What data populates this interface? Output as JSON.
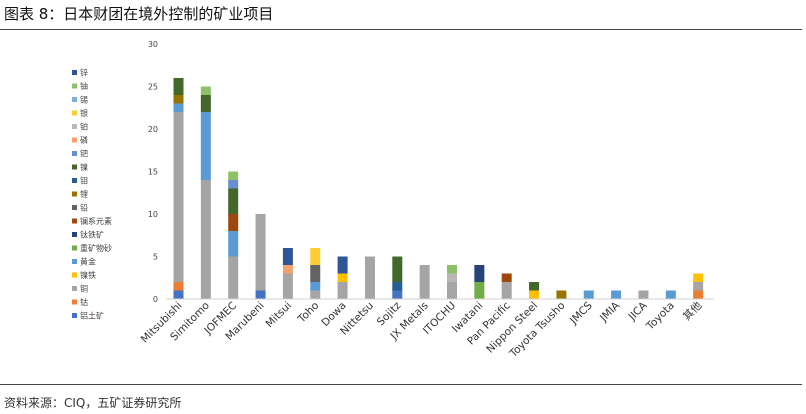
{
  "page": {
    "title": "图表 8：日本财团在境外控制的矿业项目",
    "source": "资料来源：CIQ，五矿证券研究所"
  },
  "chart_data": {
    "type": "bar",
    "stacked": true,
    "grid": false,
    "legend_position": "left",
    "ylim": [
      0,
      30
    ],
    "yticks": [
      0,
      5,
      10,
      15,
      20,
      25,
      30
    ],
    "categories": [
      "Mitsubishi",
      "Simitomo",
      "JOFMEC",
      "Marubeni",
      "Mitsui",
      "Toho",
      "Dowa",
      "Nittetsu",
      "Sojitz",
      "JX Metals",
      "ITOCHU",
      "Iwatani",
      "Pan Pacific",
      "Nippon Steel",
      "Toyota Tsusho",
      "JMCS",
      "JMIA",
      "JICA",
      "Toyota",
      "其他"
    ],
    "series": [
      {
        "name": "铝土矿",
        "color": "#4472C4",
        "values": [
          1,
          0,
          0,
          1,
          0,
          0,
          0,
          0,
          1,
          0,
          0,
          0,
          0,
          0,
          0,
          0,
          0,
          0,
          0,
          0
        ]
      },
      {
        "name": "钴",
        "color": "#ED7D31",
        "values": [
          1,
          0,
          0,
          0,
          0,
          0,
          0,
          0,
          0,
          0,
          0,
          0,
          0,
          0,
          0,
          0,
          0,
          0,
          0,
          1
        ]
      },
      {
        "name": "铜",
        "color": "#A5A5A5",
        "values": [
          20,
          14,
          5,
          9,
          3,
          1,
          2,
          5,
          0,
          4,
          2,
          0,
          2,
          0,
          0,
          0,
          0,
          1,
          0,
          1
        ]
      },
      {
        "name": "镍铁",
        "color": "#FFC000",
        "values": [
          0,
          0,
          0,
          0,
          0,
          0,
          1,
          0,
          0,
          0,
          0,
          0,
          0,
          1,
          0,
          0,
          0,
          0,
          0,
          1
        ]
      },
      {
        "name": "黄金",
        "color": "#5B9BD5",
        "values": [
          1,
          8,
          3,
          0,
          0,
          1,
          0,
          0,
          0,
          0,
          0,
          0,
          0,
          0,
          0,
          1,
          1,
          0,
          1,
          0
        ]
      },
      {
        "name": "重矿物砂",
        "color": "#70AD47",
        "values": [
          0,
          0,
          0,
          0,
          0,
          0,
          0,
          0,
          0,
          0,
          0,
          2,
          0,
          0,
          0,
          0,
          0,
          0,
          0,
          0
        ]
      },
      {
        "name": "钛铁矿",
        "color": "#264478",
        "values": [
          0,
          0,
          0,
          0,
          0,
          0,
          0,
          0,
          0,
          0,
          0,
          2,
          0,
          0,
          0,
          0,
          0,
          0,
          0,
          0
        ]
      },
      {
        "name": "镧系元素",
        "color": "#9E480E",
        "values": [
          0,
          0,
          2,
          0,
          0,
          0,
          0,
          0,
          0,
          0,
          0,
          0,
          1,
          0,
          0,
          0,
          0,
          0,
          0,
          0
        ]
      },
      {
        "name": "铅",
        "color": "#636363",
        "values": [
          0,
          0,
          0,
          0,
          0,
          2,
          0,
          0,
          0,
          0,
          0,
          0,
          0,
          0,
          0,
          0,
          0,
          0,
          0,
          0
        ]
      },
      {
        "name": "锂",
        "color": "#997300",
        "values": [
          1,
          0,
          0,
          0,
          0,
          0,
          0,
          0,
          0,
          0,
          0,
          0,
          0,
          0,
          1,
          0,
          0,
          0,
          0,
          0
        ]
      },
      {
        "name": "钼",
        "color": "#255E91",
        "values": [
          0,
          0,
          0,
          0,
          0,
          0,
          0,
          0,
          1,
          0,
          0,
          0,
          0,
          0,
          0,
          0,
          0,
          0,
          0,
          0
        ]
      },
      {
        "name": "镍",
        "color": "#43682B",
        "values": [
          2,
          2,
          3,
          0,
          0,
          0,
          0,
          0,
          3,
          0,
          0,
          0,
          0,
          1,
          0,
          0,
          0,
          0,
          0,
          0
        ]
      },
      {
        "name": "钯",
        "color": "#698ED0",
        "values": [
          0,
          0,
          1,
          0,
          0,
          0,
          0,
          0,
          0,
          0,
          0,
          0,
          0,
          0,
          0,
          0,
          0,
          0,
          0,
          0
        ]
      },
      {
        "name": "磷",
        "color": "#F4A270",
        "values": [
          0,
          0,
          0,
          0,
          1,
          0,
          0,
          0,
          0,
          0,
          0,
          0,
          0,
          0,
          0,
          0,
          0,
          0,
          0,
          0
        ]
      },
      {
        "name": "铂",
        "color": "#B7B7B7",
        "values": [
          0,
          0,
          0,
          0,
          0,
          0,
          0,
          0,
          0,
          0,
          1,
          0,
          0,
          0,
          0,
          0,
          0,
          0,
          0,
          0
        ]
      },
      {
        "name": "银",
        "color": "#FFCD33",
        "values": [
          0,
          0,
          0,
          0,
          0,
          2,
          0,
          0,
          0,
          0,
          0,
          0,
          0,
          0,
          0,
          0,
          0,
          0,
          0,
          0
        ]
      },
      {
        "name": "锡",
        "color": "#7CAFDD",
        "values": [
          0,
          0,
          0,
          0,
          0,
          0,
          0,
          0,
          0,
          0,
          0,
          0,
          0,
          0,
          0,
          0,
          0,
          0,
          0,
          0
        ]
      },
      {
        "name": "铀",
        "color": "#8CC168",
        "values": [
          0,
          1,
          1,
          0,
          0,
          0,
          0,
          0,
          0,
          0,
          1,
          0,
          0,
          0,
          0,
          0,
          0,
          0,
          0,
          0
        ]
      },
      {
        "name": "锌",
        "color": "#2F5597",
        "values": [
          0,
          0,
          0,
          0,
          2,
          0,
          2,
          0,
          0,
          0,
          0,
          0,
          0,
          0,
          0,
          0,
          0,
          0,
          0,
          0
        ]
      }
    ]
  }
}
